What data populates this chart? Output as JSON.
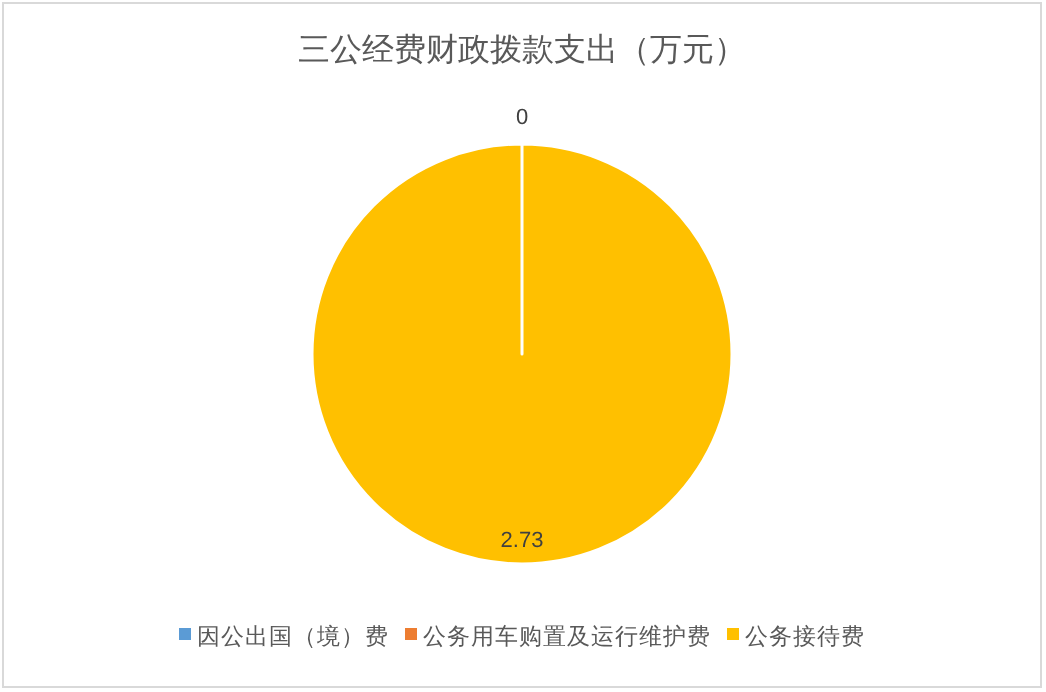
{
  "chart_data": {
    "type": "pie",
    "title": "三公经费财政拨款支出（万元）",
    "categories": [
      "因公出国（境）费",
      "公务用车购置及运行维护费",
      "公务接待费"
    ],
    "values": [
      0,
      0,
      2.73
    ],
    "colors": [
      "#5b9bd5",
      "#ed7d31",
      "#ffc000"
    ],
    "value_labels": [
      "0",
      null,
      "2.73"
    ],
    "legend": "bottom"
  }
}
